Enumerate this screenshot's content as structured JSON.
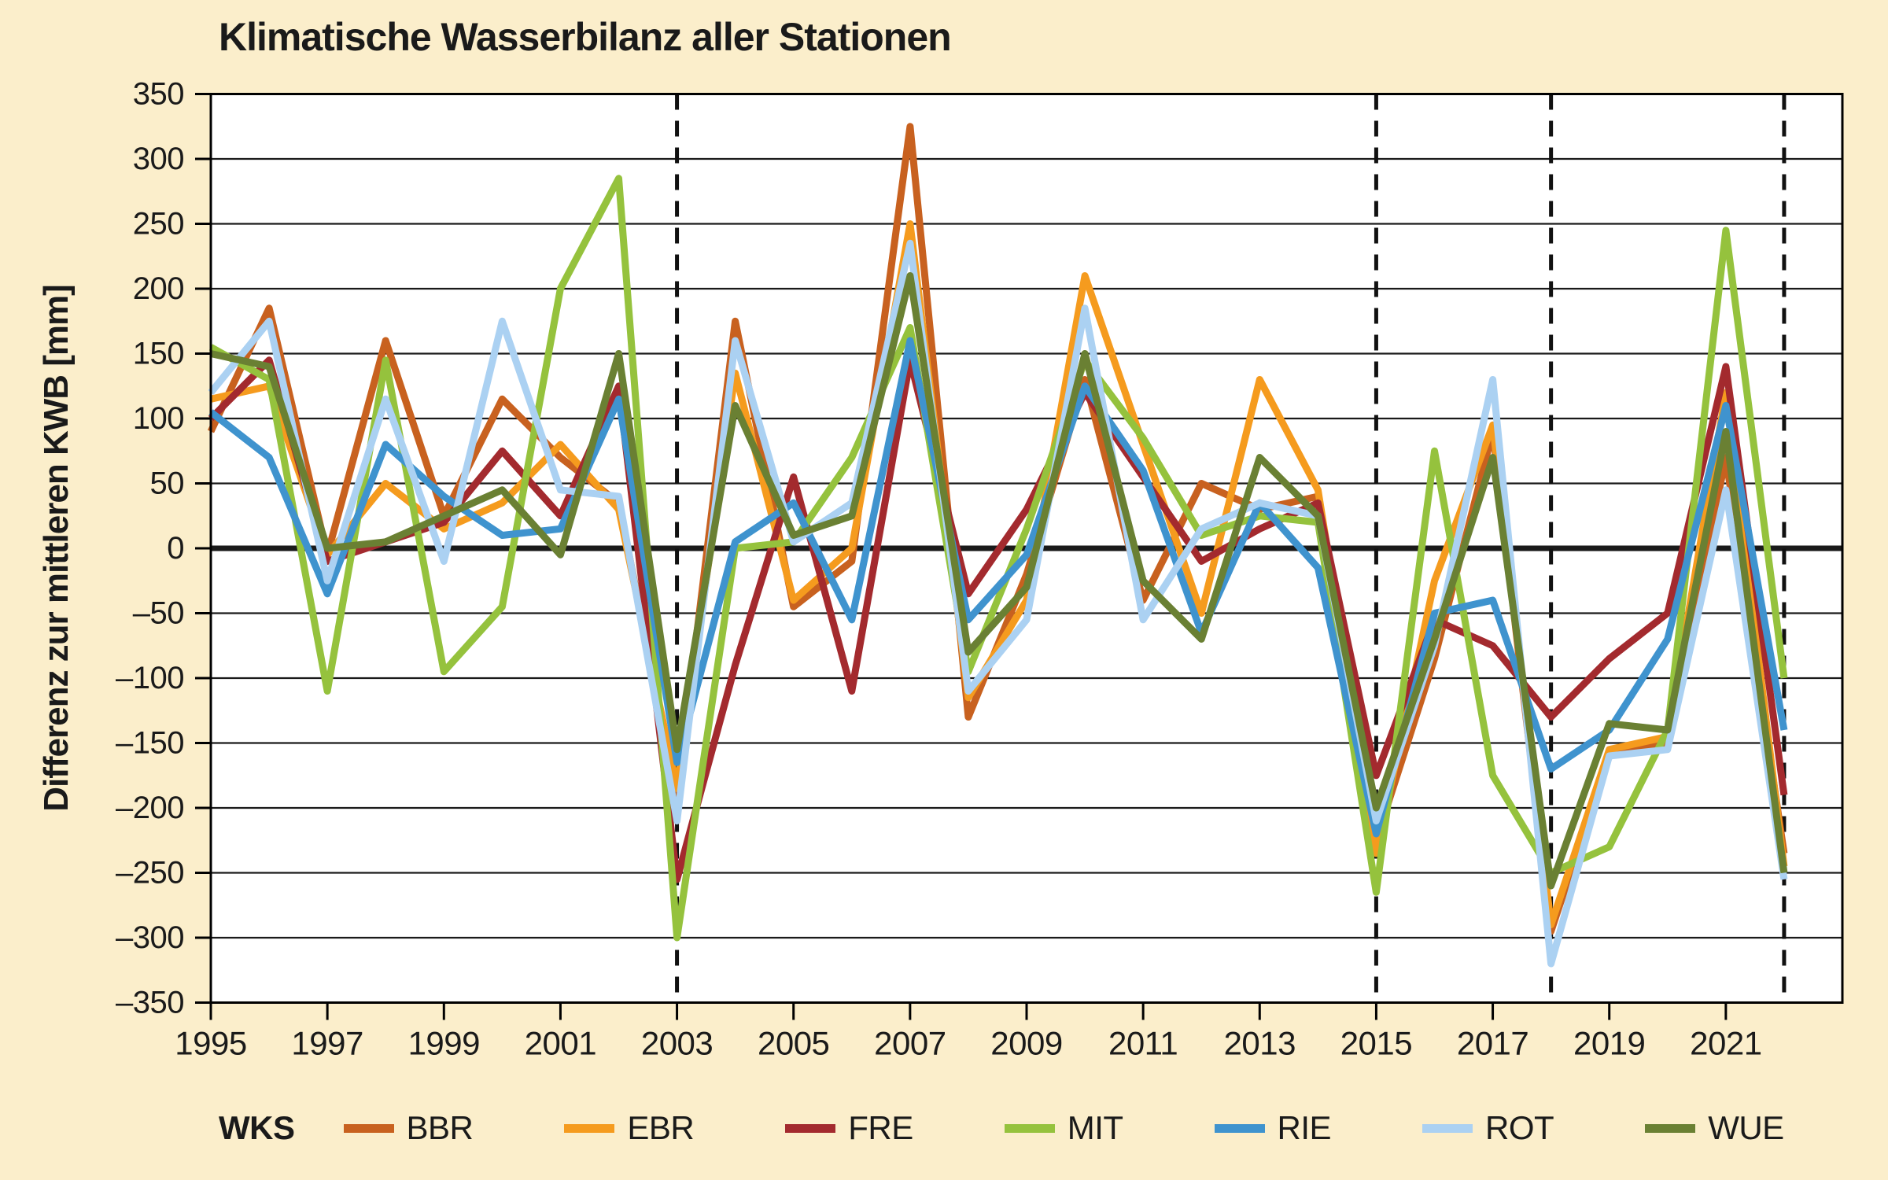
{
  "colors": {
    "background": "#FBEECB",
    "plot_background": "#FFFFFF",
    "axis": "#000000",
    "grid": "#1a1a1a",
    "text": "#1a1a1a"
  },
  "chart_data": {
    "type": "line",
    "title": "Klimatische Wasserbilanz aller Stationen",
    "ylabel": "Differenz zur mittleren KWB [mm]",
    "legend_title": "WKS",
    "xlim": [
      1995,
      2023
    ],
    "ylim": [
      -350,
      350
    ],
    "grid": "horizontal, every 50 mm, zero line emphasized",
    "legend_position": "bottom",
    "x": [
      1995,
      1996,
      1997,
      1998,
      1999,
      2000,
      2001,
      2002,
      2003,
      2004,
      2005,
      2006,
      2007,
      2008,
      2009,
      2010,
      2011,
      2012,
      2013,
      2014,
      2015,
      2016,
      2017,
      2018,
      2019,
      2020,
      2021,
      2022
    ],
    "xtick_labels": [
      "1995",
      "1997",
      "1999",
      "2001",
      "2003",
      "2005",
      "2007",
      "2009",
      "2011",
      "2013",
      "2015",
      "2017",
      "2019",
      "2021"
    ],
    "xticks": [
      1995,
      1997,
      1999,
      2001,
      2003,
      2005,
      2007,
      2009,
      2011,
      2013,
      2015,
      2017,
      2019,
      2021
    ],
    "ytick_labels": [
      "350",
      "300",
      "250",
      "200",
      "150",
      "100",
      "50",
      "0",
      "–50",
      "–100",
      "–150",
      "–200",
      "–250",
      "–300",
      "–350"
    ],
    "yticks": [
      350,
      300,
      250,
      200,
      150,
      100,
      50,
      0,
      -50,
      -100,
      -150,
      -200,
      -250,
      -300,
      -350
    ],
    "dashed_vlines": [
      2003,
      2015,
      2018,
      2022
    ],
    "series": [
      {
        "name": "BBR",
        "color": "#C8611F",
        "values": [
          90,
          185,
          -5,
          160,
          25,
          115,
          70,
          35,
          -190,
          175,
          -45,
          -10,
          325,
          -130,
          -20,
          130,
          -40,
          50,
          30,
          40,
          -225,
          -85,
          90,
          -295,
          -160,
          -150,
          70,
          -235
        ]
      },
      {
        "name": "EBR",
        "color": "#F59B1E",
        "values": [
          115,
          125,
          -5,
          50,
          15,
          35,
          80,
          30,
          -185,
          135,
          -40,
          0,
          250,
          -115,
          -40,
          210,
          80,
          -50,
          130,
          45,
          -235,
          -25,
          95,
          -290,
          -155,
          -145,
          120,
          -245
        ]
      },
      {
        "name": "FRE",
        "color": "#A32A2E",
        "values": [
          100,
          145,
          -10,
          5,
          20,
          75,
          25,
          125,
          -255,
          -90,
          55,
          -110,
          145,
          -35,
          30,
          120,
          55,
          -10,
          15,
          35,
          -175,
          -55,
          -75,
          -130,
          -85,
          -50,
          140,
          -190
        ]
      },
      {
        "name": "MIT",
        "color": "#95C23D",
        "values": [
          155,
          130,
          -110,
          145,
          -95,
          -45,
          200,
          285,
          -300,
          0,
          5,
          70,
          170,
          -95,
          15,
          145,
          85,
          10,
          25,
          20,
          -265,
          75,
          -175,
          -250,
          -230,
          -140,
          245,
          -100
        ]
      },
      {
        "name": "RIE",
        "color": "#3F93CE",
        "values": [
          105,
          70,
          -35,
          80,
          40,
          10,
          15,
          115,
          -165,
          5,
          35,
          -55,
          160,
          -55,
          -5,
          125,
          60,
          -65,
          35,
          -15,
          -220,
          -50,
          -40,
          -170,
          -140,
          -70,
          110,
          -140
        ]
      },
      {
        "name": "ROT",
        "color": "#ABD1F2",
        "values": [
          120,
          175,
          -25,
          115,
          -10,
          175,
          45,
          40,
          -210,
          160,
          5,
          35,
          235,
          -110,
          -55,
          185,
          -55,
          15,
          35,
          25,
          -210,
          -75,
          130,
          -320,
          -160,
          -155,
          45,
          -255
        ]
      },
      {
        "name": "WUE",
        "color": "#6A8033",
        "values": [
          150,
          140,
          0,
          5,
          25,
          45,
          -5,
          150,
          -155,
          110,
          10,
          25,
          210,
          -80,
          -30,
          150,
          -25,
          -70,
          70,
          25,
          -200,
          -70,
          70,
          -260,
          -135,
          -140,
          90,
          -250
        ]
      }
    ]
  }
}
